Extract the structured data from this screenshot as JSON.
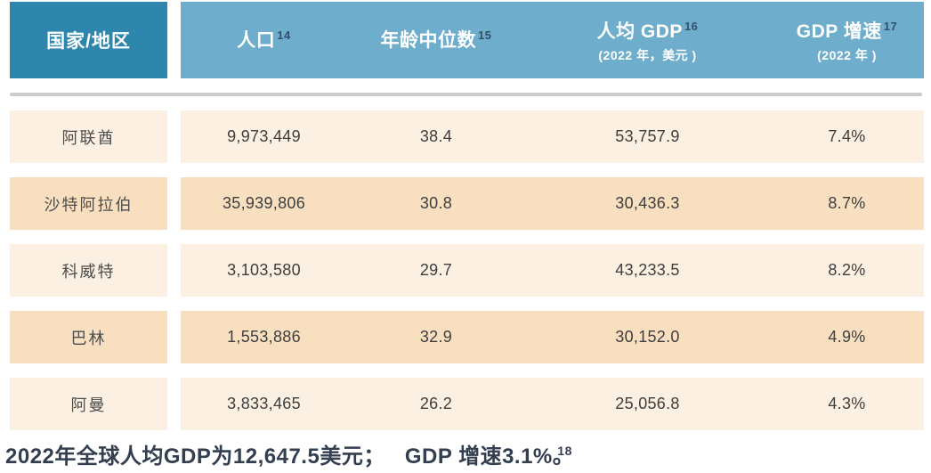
{
  "colors": {
    "header_country_bg": "#2E86AD",
    "header_bg": "#6EADCB",
    "row_light_bg": "#FBF0E1",
    "row_dark_bg": "#F8DFC0",
    "divider": "#CBCBCB",
    "footnote_text": "#333F50",
    "sup_color": "#33506B",
    "cell_text": "#3E3E3E"
  },
  "table": {
    "corner_label": "国家/地区",
    "columns": [
      {
        "label": "人口",
        "sup": "14",
        "subtitle": ""
      },
      {
        "label": "年龄中位数",
        "sup": "15",
        "subtitle": ""
      },
      {
        "label": "人均 GDP",
        "sup": "16",
        "subtitle": "(2022 年，美元 )"
      },
      {
        "label": "GDP 增速",
        "sup": "17",
        "subtitle": "(2022 年 )"
      }
    ],
    "rows": [
      {
        "country": "阿联酋",
        "population": "9,973,449",
        "median_age": "38.4",
        "gdp_per_capita": "53,757.9",
        "gdp_growth": "7.4%"
      },
      {
        "country": "沙特阿拉伯",
        "population": "35,939,806",
        "median_age": "30.8",
        "gdp_per_capita": "30,436.3",
        "gdp_growth": "8.7%"
      },
      {
        "country": "科威特",
        "population": "3,103,580",
        "median_age": "29.7",
        "gdp_per_capita": "43,233.5",
        "gdp_growth": "8.2%"
      },
      {
        "country": "巴林",
        "population": "1,553,886",
        "median_age": "32.9",
        "gdp_per_capita": "30,152.0",
        "gdp_growth": "4.9%"
      },
      {
        "country": "阿曼",
        "population": "3,833,465",
        "median_age": "26.2",
        "gdp_per_capita": "25,056.8",
        "gdp_growth": "4.3%"
      }
    ]
  },
  "footnote": {
    "part1": "2022年全球人均GDP为12,647.5美元；",
    "part2": "GDP 增速3.1%。",
    "sup": "18"
  }
}
